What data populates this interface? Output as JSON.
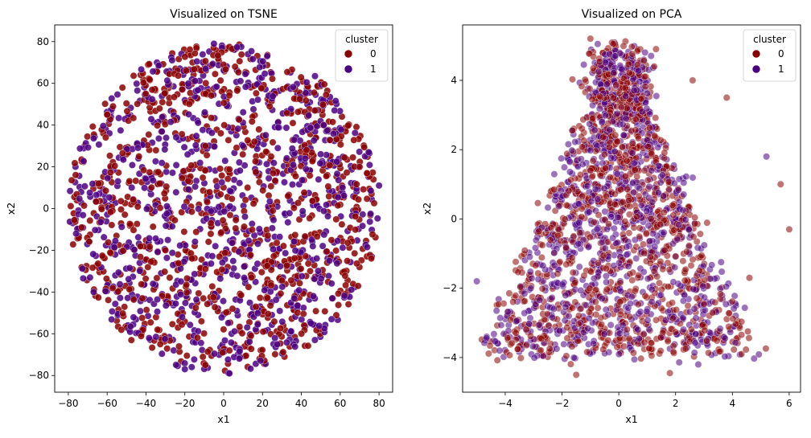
{
  "chart_data": [
    {
      "type": "scatter",
      "title": "Visualized on TSNE",
      "xlabel": "x1",
      "ylabel": "x2",
      "xlim": [
        -87,
        87
      ],
      "ylim": [
        -88,
        88
      ],
      "xticks": [
        -80,
        -60,
        -40,
        -20,
        0,
        20,
        40,
        60,
        80
      ],
      "yticks": [
        -80,
        -60,
        -40,
        -20,
        0,
        20,
        40,
        60,
        80
      ],
      "legend": {
        "title": "cluster",
        "placement": "top-right"
      },
      "series": [
        {
          "name": "0",
          "color": "#8b0000"
        },
        {
          "name": "1",
          "color": "#4b0082"
        }
      ],
      "distribution": "disk",
      "center": [
        0,
        0
      ],
      "radius": [
        80,
        79
      ],
      "point_count": 1800,
      "samples": [
        {
          "x": -76,
          "y": -12,
          "cluster": "1"
        },
        {
          "x": 80,
          "y": 11,
          "cluster": "1"
        },
        {
          "x": -5,
          "y": 79,
          "cluster": "1"
        },
        {
          "x": 3,
          "y": -79,
          "cluster": "1"
        },
        {
          "x": -20,
          "y": -77,
          "cluster": "1"
        },
        {
          "x": 70,
          "y": 20,
          "cluster": "0"
        },
        {
          "x": -60,
          "y": 45,
          "cluster": "0"
        },
        {
          "x": 40,
          "y": -60,
          "cluster": "0"
        },
        {
          "x": 10,
          "y": 30,
          "cluster": "1"
        },
        {
          "x": -30,
          "y": -20,
          "cluster": "0"
        }
      ]
    },
    {
      "type": "scatter",
      "title": "Visualized on PCA",
      "xlabel": "x1",
      "ylabel": "x2",
      "xlim": [
        -5.5,
        6.4
      ],
      "ylim": [
        -5.0,
        5.6
      ],
      "xticks": [
        -4,
        -2,
        0,
        2,
        4,
        6
      ],
      "yticks": [
        -4,
        -2,
        0,
        2,
        4
      ],
      "legend": {
        "title": "cluster",
        "placement": "top-right"
      },
      "series": [
        {
          "name": "0",
          "color": "#8b0000"
        },
        {
          "name": "1",
          "color": "#4b0082"
        }
      ],
      "distribution": "triangular-cloud",
      "apex": [
        0,
        5.0
      ],
      "base_y": -3.8,
      "base_x": [
        -4.8,
        4.8
      ],
      "point_count": 2200,
      "samples": [
        {
          "x": -0.2,
          "y": 5.05,
          "cluster": "0"
        },
        {
          "x": 6.0,
          "y": -0.3,
          "cluster": "0"
        },
        {
          "x": 5.7,
          "y": 1.0,
          "cluster": "0"
        },
        {
          "x": 5.2,
          "y": 1.8,
          "cluster": "1"
        },
        {
          "x": -1.5,
          "y": -4.5,
          "cluster": "0"
        },
        {
          "x": 1.8,
          "y": -4.45,
          "cluster": "0"
        },
        {
          "x": -4.2,
          "y": -3.8,
          "cluster": "1"
        },
        {
          "x": -5.0,
          "y": -1.8,
          "cluster": "1"
        },
        {
          "x": 4.6,
          "y": -1.7,
          "cluster": "0"
        },
        {
          "x": 2.8,
          "y": -4.2,
          "cluster": "1"
        },
        {
          "x": 3.8,
          "y": 3.5,
          "cluster": "0"
        },
        {
          "x": 2.6,
          "y": 4.0,
          "cluster": "0"
        }
      ]
    }
  ]
}
